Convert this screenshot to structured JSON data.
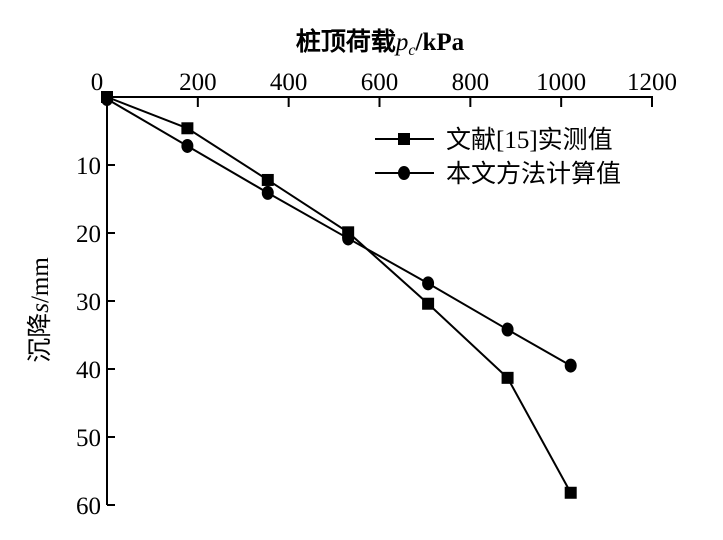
{
  "chart_data": {
    "type": "line",
    "title": "桩顶荷载p_c/kPa",
    "xlabel": {
      "prefix": "桩顶荷载",
      "var": "p",
      "sub": "c",
      "unit": "/kPa"
    },
    "ylabel": {
      "prefix": "沉降",
      "var": "s",
      "unit": "/mm"
    },
    "xlim": [
      0,
      1200
    ],
    "ylim": [
      0,
      60
    ],
    "y_inverted": true,
    "x_axis_position": "top",
    "xticks": [
      "0",
      "200",
      "400",
      "600",
      "800",
      "1000",
      "1200"
    ],
    "yticks": [
      "10",
      "20",
      "30",
      "40",
      "50",
      "60"
    ],
    "grid": false,
    "legend_position": "top-right",
    "series": [
      {
        "name": "文献[15]实测值",
        "marker": "square",
        "x": [
          0,
          177,
          354,
          531,
          707,
          882,
          1021
        ],
        "y": [
          0,
          4.6,
          12.2,
          19.9,
          30.4,
          41.3,
          58.2
        ]
      },
      {
        "name": "本文方法计算值",
        "marker": "circle",
        "x": [
          0,
          177,
          354,
          531,
          707,
          882,
          1021
        ],
        "y": [
          0.3,
          7.2,
          14.1,
          20.8,
          27.4,
          34.2,
          39.5
        ]
      }
    ]
  }
}
